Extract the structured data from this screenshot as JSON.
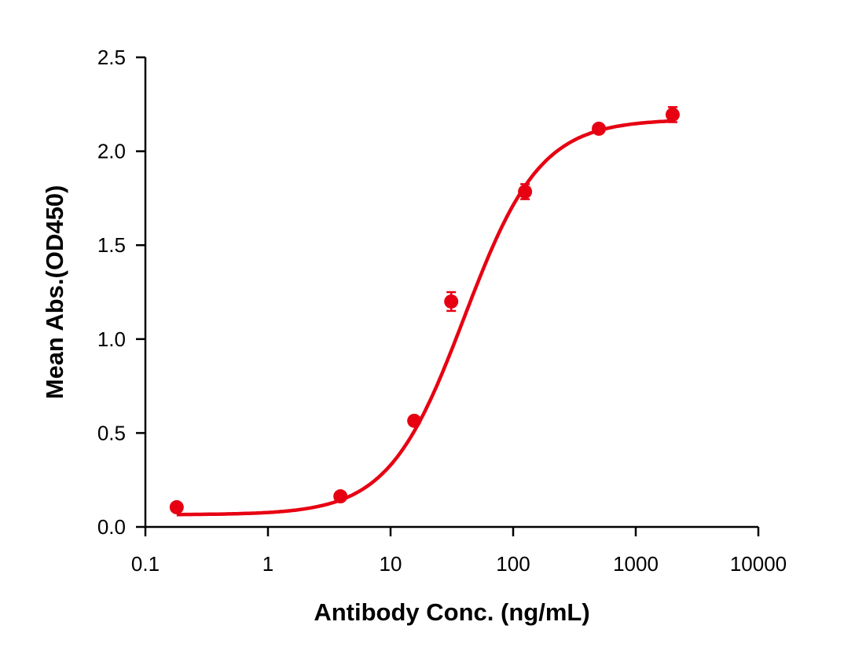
{
  "chart_data": {
    "type": "scatter",
    "title": "",
    "xlabel": "Antibody Conc. (ng/mL)",
    "ylabel": "Mean Abs.(OD450)",
    "x_scale": "log",
    "xlim": [
      0.1,
      10000
    ],
    "ylim": [
      0,
      2.5
    ],
    "x_ticks": [
      "0.1",
      "1",
      "10",
      "100",
      "1000",
      "10000"
    ],
    "y_ticks": [
      "0.0",
      "0.5",
      "1.0",
      "1.5",
      "2.0",
      "2.5"
    ],
    "grid": false,
    "color": "#e60012",
    "series": [
      {
        "x": [
          0.18,
          3.9,
          15.6,
          31.25,
          125,
          500,
          2000
        ],
        "y": [
          0.105,
          0.163,
          0.565,
          1.2,
          1.785,
          2.12,
          2.195
        ],
        "error": [
          0.01,
          0.01,
          0.015,
          0.05,
          0.04,
          0.015,
          0.04
        ],
        "fit": "sigmoidal 4PL curve"
      }
    ]
  }
}
